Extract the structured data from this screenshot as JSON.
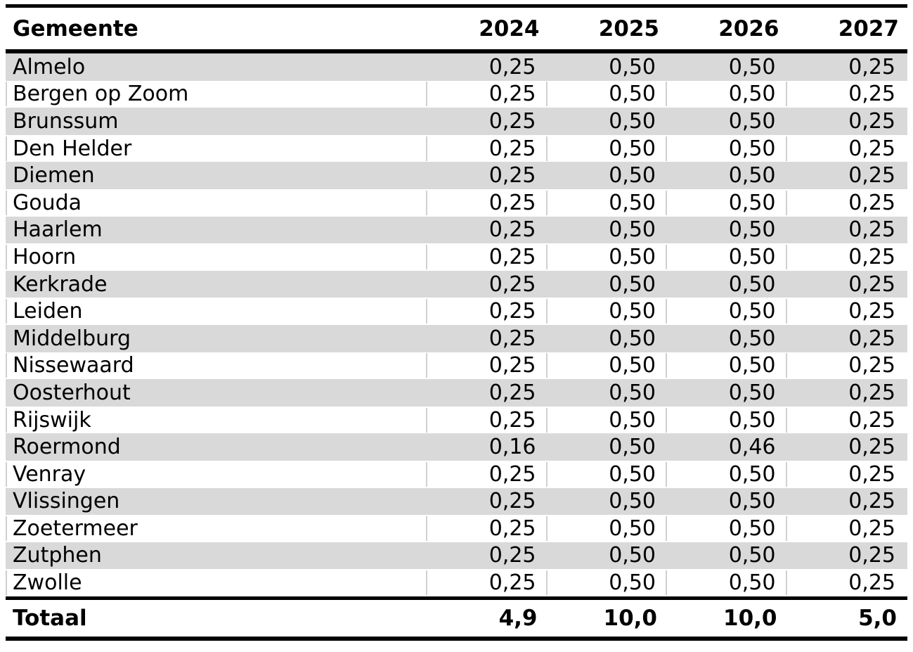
{
  "chart_data": {
    "type": "table",
    "columns": [
      "Gemeente",
      "2024",
      "2025",
      "2026",
      "2027"
    ],
    "rows": [
      {
        "name": "Almelo",
        "values": [
          "0,25",
          "0,50",
          "0,50",
          "0,25"
        ]
      },
      {
        "name": "Bergen op Zoom",
        "values": [
          "0,25",
          "0,50",
          "0,50",
          "0,25"
        ]
      },
      {
        "name": "Brunssum",
        "values": [
          "0,25",
          "0,50",
          "0,50",
          "0,25"
        ]
      },
      {
        "name": "Den Helder",
        "values": [
          "0,25",
          "0,50",
          "0,50",
          "0,25"
        ]
      },
      {
        "name": "Diemen",
        "values": [
          "0,25",
          "0,50",
          "0,50",
          "0,25"
        ]
      },
      {
        "name": "Gouda",
        "values": [
          "0,25",
          "0,50",
          "0,50",
          "0,25"
        ]
      },
      {
        "name": "Haarlem",
        "values": [
          "0,25",
          "0,50",
          "0,50",
          "0,25"
        ]
      },
      {
        "name": "Hoorn",
        "values": [
          "0,25",
          "0,50",
          "0,50",
          "0,25"
        ]
      },
      {
        "name": "Kerkrade",
        "values": [
          "0,25",
          "0,50",
          "0,50",
          "0,25"
        ]
      },
      {
        "name": "Leiden",
        "values": [
          "0,25",
          "0,50",
          "0,50",
          "0,25"
        ]
      },
      {
        "name": "Middelburg",
        "values": [
          "0,25",
          "0,50",
          "0,50",
          "0,25"
        ]
      },
      {
        "name": "Nissewaard",
        "values": [
          "0,25",
          "0,50",
          "0,50",
          "0,25"
        ]
      },
      {
        "name": "Oosterhout",
        "values": [
          "0,25",
          "0,50",
          "0,50",
          "0,25"
        ]
      },
      {
        "name": "Rijswijk",
        "values": [
          "0,25",
          "0,50",
          "0,50",
          "0,25"
        ]
      },
      {
        "name": "Roermond",
        "values": [
          "0,16",
          "0,50",
          "0,46",
          "0,25"
        ]
      },
      {
        "name": "Venray",
        "values": [
          "0,25",
          "0,50",
          "0,50",
          "0,25"
        ]
      },
      {
        "name": "Vlissingen",
        "values": [
          "0,25",
          "0,50",
          "0,50",
          "0,25"
        ]
      },
      {
        "name": "Zoetermeer",
        "values": [
          "0,25",
          "0,50",
          "0,50",
          "0,25"
        ]
      },
      {
        "name": "Zutphen",
        "values": [
          "0,25",
          "0,50",
          "0,50",
          "0,25"
        ]
      },
      {
        "name": "Zwolle",
        "values": [
          "0,25",
          "0,50",
          "0,50",
          "0,25"
        ]
      }
    ],
    "total": {
      "label": "Totaal",
      "values": [
        "4,9",
        "10,0",
        "10,0",
        "5,0"
      ]
    },
    "layout_hints": {
      "striped": true,
      "first_row_striped": true,
      "number_alignment": "right",
      "decimal_separator": "comma"
    }
  },
  "colors": {
    "stripe_gray": "#d9d9d9",
    "divider_gray": "#d0d0d0",
    "rule_black": "#000000",
    "text": "#000000",
    "background": "#ffffff"
  }
}
